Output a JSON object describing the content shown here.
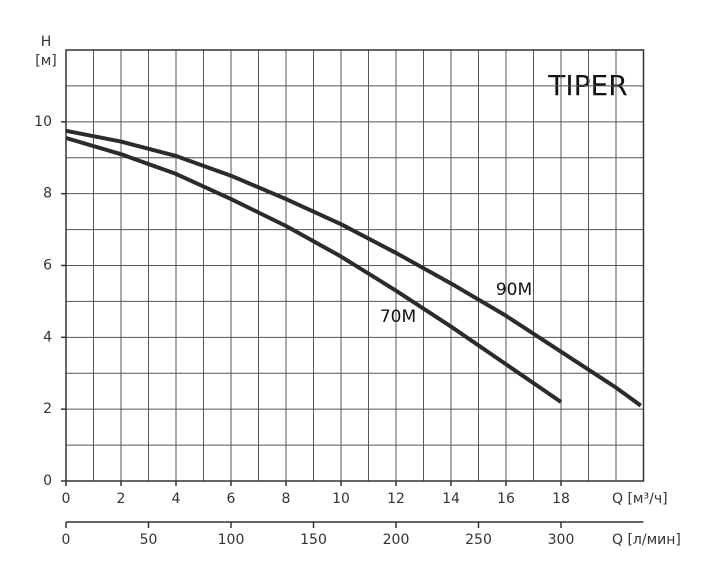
{
  "chart_data": {
    "type": "line",
    "title": "TIPER",
    "y_label": "H",
    "y_unit": "[м]",
    "x_label": "Q [м³/ч]",
    "x2_label": "Q [л/мин]",
    "xlim": [
      0,
      21
    ],
    "xticks": [
      0,
      2,
      4,
      6,
      8,
      10,
      12,
      14,
      16,
      18
    ],
    "ylim": [
      0,
      12
    ],
    "yticks": [
      0,
      2,
      4,
      6,
      8,
      10
    ],
    "x2lim": [
      0,
      350
    ],
    "x2ticks": [
      0,
      50,
      100,
      150,
      200,
      250,
      300
    ],
    "grid": true,
    "series": [
      {
        "name": "90M",
        "color": "#2b2b2b",
        "x": [
          0,
          2,
          4,
          6,
          8,
          10,
          12,
          14,
          16,
          18,
          20,
          20.9
        ],
        "values": [
          9.75,
          9.45,
          9.05,
          8.5,
          7.85,
          7.15,
          6.35,
          5.5,
          4.6,
          3.6,
          2.6,
          2.1
        ]
      },
      {
        "name": "70M",
        "color": "#2b2b2b",
        "x": [
          0,
          2,
          4,
          6,
          8,
          10,
          12,
          14,
          16,
          18
        ],
        "values": [
          9.55,
          9.1,
          8.55,
          7.85,
          7.1,
          6.25,
          5.3,
          4.3,
          3.25,
          2.2
        ]
      }
    ]
  }
}
